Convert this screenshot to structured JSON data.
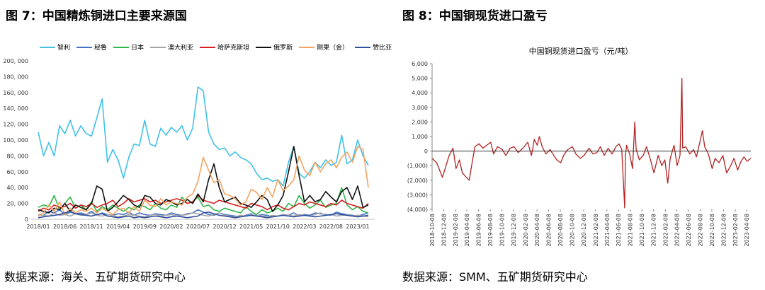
{
  "figure1": {
    "title": "图 7：中国精炼铜进口主要来源国",
    "source": "数据来源：海关、五矿期货研究中心"
  },
  "figure2": {
    "title": "图 8：中国铜现货进口盈亏",
    "source": "数据来源：SMM、五矿期货研究中心"
  },
  "colors": {
    "智利": "#3fc1e8",
    "秘鲁": "#4472c4",
    "日本": "#2eb84c",
    "澳大利亚": "#a5a5a5",
    "哈萨克斯坦": "#d62020",
    "俄罗斯": "#111111",
    "刚果（金）": "#f4a460",
    "赞比亚": "#2f4f9f",
    "profit_line": "#b22222"
  },
  "chart_data": [
    {
      "type": "line",
      "title": "",
      "ylim": [
        0,
        200000
      ],
      "yticks": [
        "0",
        "20, 000",
        "40, 000",
        "60, 000",
        "80, 000",
        "100, 000",
        "120, 000",
        "140, 000",
        "160, 000",
        "180, 000",
        "200, 000"
      ],
      "x_range": [
        "2018-01",
        "2023-03"
      ],
      "xticks": [
        "2018/01",
        "2018/06",
        "2018/11",
        "2019/04",
        "2019/09",
        "2020/02",
        "2020/07",
        "2020/12",
        "2021/05",
        "2021/10",
        "2022/03",
        "2022/08",
        "2023/01"
      ],
      "legend_position": "top",
      "series": [
        {
          "name": "智利",
          "values": [
            110000,
            80000,
            97000,
            80000,
            118000,
            108000,
            125000,
            105000,
            118000,
            108000,
            105000,
            128000,
            152000,
            72000,
            88000,
            75000,
            52000,
            78000,
            95000,
            93000,
            125000,
            95000,
            92000,
            115000,
            106000,
            116000,
            110000,
            118000,
            100000,
            115000,
            167000,
            162000,
            110000,
            95000,
            88000,
            90000,
            80000,
            85000,
            78000,
            75000,
            70000,
            58000,
            50000,
            52000,
            48000,
            50000,
            42000,
            72000,
            92000,
            58000,
            52000,
            60000,
            72000,
            65000,
            75000,
            68000,
            72000,
            106000,
            70000,
            75000,
            100000,
            80000,
            68000
          ]
        },
        {
          "name": "秘鲁",
          "values": [
            6000,
            5000,
            10000,
            8000,
            12000,
            6000,
            9000,
            7000,
            8000,
            6000,
            10000,
            5000,
            8000,
            6000,
            5000,
            7000,
            6000,
            9000,
            5000,
            8000,
            6000,
            5000,
            7000,
            6000,
            5000,
            8000,
            6000,
            5000,
            7000,
            8000,
            12000,
            9000,
            6000,
            5000,
            8000,
            6000,
            5000,
            4000,
            3000,
            5000,
            7000,
            4000,
            6000,
            5000,
            3000,
            4000,
            6000,
            5000,
            8000,
            4000,
            6000,
            5000,
            8000,
            7000,
            6000,
            5000,
            9000,
            7000,
            6000,
            5000,
            4000,
            6000,
            8000
          ]
        },
        {
          "name": "日本",
          "values": [
            15000,
            18000,
            16000,
            30000,
            12000,
            20000,
            28000,
            14000,
            18000,
            12000,
            22000,
            10000,
            16000,
            12000,
            18000,
            14000,
            10000,
            15000,
            12000,
            18000,
            16000,
            12000,
            20000,
            14000,
            12000,
            18000,
            15000,
            28000,
            20000,
            22000,
            28000,
            16000,
            18000,
            12000,
            10000,
            14000,
            12000,
            10000,
            8000,
            16000,
            10000,
            6000,
            12000,
            8000,
            10000,
            14000,
            10000,
            20000,
            16000,
            30000,
            20000,
            14000,
            18000,
            24000,
            15000,
            18000,
            20000,
            40000,
            18000,
            12000,
            16000,
            10000,
            8000
          ]
        },
        {
          "name": "澳大利亚",
          "values": [
            6000,
            5000,
            4000,
            8000,
            5000,
            6000,
            4000,
            7000,
            5000,
            6000,
            8000,
            5000,
            4000,
            6000,
            5000,
            3000,
            4000,
            6000,
            5000,
            4000,
            3000,
            5000,
            6000,
            4000,
            5000,
            6000,
            4000,
            5000,
            6000,
            8000,
            7000,
            5000,
            4000,
            6000,
            8000,
            5000,
            4000,
            3000,
            5000,
            4000,
            6000,
            5000,
            4000,
            3000,
            5000,
            4000,
            6000,
            5000,
            4000,
            6000,
            5000,
            4000,
            6000,
            8000,
            5000,
            6000,
            4000,
            5000,
            6000,
            4000,
            5000,
            4000,
            3000
          ]
        },
        {
          "name": "哈萨克斯坦",
          "values": [
            10000,
            14000,
            12000,
            18000,
            15000,
            16000,
            20000,
            14000,
            18000,
            16000,
            20000,
            15000,
            18000,
            20000,
            24000,
            16000,
            20000,
            26000,
            22000,
            24000,
            26000,
            22000,
            24000,
            20000,
            22000,
            24000,
            26000,
            24000,
            20000,
            22000,
            30000,
            24000,
            22000,
            20000,
            24000,
            22000,
            20000,
            18000,
            16000,
            14000,
            20000,
            18000,
            16000,
            12000,
            16000,
            18000,
            14000,
            12000,
            16000,
            20000,
            18000,
            22000,
            20000,
            18000,
            16000,
            20000,
            18000,
            24000,
            20000,
            18000,
            16000,
            14000,
            20000
          ]
        },
        {
          "name": "俄罗斯",
          "values": [
            12000,
            10000,
            8000,
            14000,
            12000,
            20000,
            10000,
            18000,
            15000,
            12000,
            20000,
            42000,
            38000,
            10000,
            15000,
            22000,
            30000,
            25000,
            18000,
            15000,
            30000,
            28000,
            20000,
            18000,
            25000,
            22000,
            18000,
            20000,
            25000,
            20000,
            32000,
            22000,
            50000,
            70000,
            40000,
            22000,
            25000,
            28000,
            20000,
            18000,
            15000,
            22000,
            30000,
            25000,
            10000,
            18000,
            30000,
            60000,
            92000,
            55000,
            22000,
            30000,
            22000,
            25000,
            35000,
            28000,
            22000,
            35000,
            40000,
            25000,
            42000,
            15000,
            18000
          ]
        },
        {
          "name": "刚果（金）",
          "values": [
            4000,
            8000,
            18000,
            10000,
            22000,
            6000,
            14000,
            8000,
            12000,
            10000,
            14000,
            8000,
            14000,
            10000,
            6000,
            12000,
            14000,
            8000,
            16000,
            10000,
            24000,
            18000,
            16000,
            26000,
            18000,
            22000,
            20000,
            18000,
            28000,
            32000,
            48000,
            78000,
            62000,
            46000,
            50000,
            32000,
            30000,
            26000,
            18000,
            22000,
            38000,
            34000,
            25000,
            40000,
            28000,
            50000,
            36000,
            42000,
            50000,
            80000,
            62000,
            55000,
            72000,
            60000,
            70000,
            75000,
            65000,
            78000,
            85000,
            72000,
            92000,
            88000,
            40000
          ]
        },
        {
          "name": "赞比亚",
          "values": [
            2000,
            3000,
            4000,
            5000,
            6000,
            8000,
            10000,
            7000,
            6000,
            5000,
            4000,
            6000,
            7000,
            4000,
            3000,
            2000,
            3000,
            4000,
            2000,
            3000,
            2000,
            3000,
            4000,
            3000,
            2000,
            3000,
            4000,
            3000,
            2000,
            3000,
            4000,
            8000,
            9000,
            7000,
            5000,
            4000,
            3000,
            2000,
            3000,
            4000,
            5000,
            4000,
            3000,
            2000,
            3000,
            4000,
            5000,
            4000,
            3000,
            4000,
            5000,
            4000,
            3000,
            4000,
            5000,
            6000,
            7000,
            6000,
            5000,
            4000,
            3000,
            4000,
            5000
          ]
        }
      ]
    },
    {
      "type": "line",
      "title": "中国铜现货进口盈亏（元/吨）",
      "ylim": [
        -4000,
        6000
      ],
      "yticks": [
        "(4,000)",
        "(3,000)",
        "(2,000)",
        "(1,000)",
        "0",
        "1,000",
        "2,000",
        "3,000",
        "4,000",
        "5,000",
        "6,000"
      ],
      "x_range": [
        "2018-10-08",
        "2023-04-30"
      ],
      "xticks": [
        "2018-10-08",
        "2018-12-08",
        "2019-02-08",
        "2019-04-08",
        "2019-06-08",
        "2019-08-08",
        "2019-10-08",
        "2019-12-08",
        "2020-02-08",
        "2020-04-08",
        "2020-06-08",
        "2020-08-08",
        "2020-10-08",
        "2020-12-08",
        "2021-02-08",
        "2021-04-08",
        "2021-06-08",
        "2021-08-08",
        "2021-10-08",
        "2021-12-08",
        "2022-02-08",
        "2022-04-08",
        "2022-06-08",
        "2022-08-08",
        "2022-10-08",
        "2022-12-08",
        "2023-02-08",
        "2023-04-08"
      ],
      "series": [
        {
          "name": "",
          "points": [
            [
              "2018-10-08",
              -500
            ],
            [
              "2018-11-01",
              -800
            ],
            [
              "2018-12-01",
              -1800
            ],
            [
              "2018-12-20",
              -1000
            ],
            [
              "2019-01-05",
              -300
            ],
            [
              "2019-01-25",
              200
            ],
            [
              "2019-02-10",
              -1200
            ],
            [
              "2019-02-28",
              -600
            ],
            [
              "2019-03-15",
              -1500
            ],
            [
              "2019-04-05",
              -1800
            ],
            [
              "2019-04-20",
              -2000
            ],
            [
              "2019-05-05",
              -800
            ],
            [
              "2019-05-20",
              300
            ],
            [
              "2019-06-10",
              500
            ],
            [
              "2019-07-01",
              200
            ],
            [
              "2019-07-20",
              400
            ],
            [
              "2019-08-10",
              600
            ],
            [
              "2019-08-25",
              -200
            ],
            [
              "2019-09-15",
              300
            ],
            [
              "2019-10-10",
              100
            ],
            [
              "2019-10-28",
              -300
            ],
            [
              "2019-11-20",
              200
            ],
            [
              "2019-12-10",
              300
            ],
            [
              "2020-01-01",
              -100
            ],
            [
              "2020-01-25",
              200
            ],
            [
              "2020-02-20",
              600
            ],
            [
              "2020-03-10",
              -300
            ],
            [
              "2020-03-25",
              800
            ],
            [
              "2020-04-10",
              400
            ],
            [
              "2020-04-20",
              1000
            ],
            [
              "2020-05-05",
              300
            ],
            [
              "2020-05-25",
              -200
            ],
            [
              "2020-06-15",
              100
            ],
            [
              "2020-07-05",
              -300
            ],
            [
              "2020-07-20",
              -600
            ],
            [
              "2020-08-10",
              -800
            ],
            [
              "2020-08-25",
              -300
            ],
            [
              "2020-09-15",
              100
            ],
            [
              "2020-10-10",
              300
            ],
            [
              "2020-10-28",
              -200
            ],
            [
              "2020-11-20",
              -500
            ],
            [
              "2020-12-10",
              -300
            ],
            [
              "2021-01-05",
              200
            ],
            [
              "2021-01-25",
              -200
            ],
            [
              "2021-02-15",
              -100
            ],
            [
              "2021-03-05",
              300
            ],
            [
              "2021-03-25",
              -300
            ],
            [
              "2021-04-15",
              200
            ],
            [
              "2021-05-05",
              -200
            ],
            [
              "2021-05-25",
              300
            ],
            [
              "2021-06-10",
              500
            ],
            [
              "2021-06-25",
              100
            ],
            [
              "2021-07-10",
              -3900
            ],
            [
              "2021-07-14",
              -300
            ],
            [
              "2021-07-20",
              400
            ],
            [
              "2021-08-05",
              -200
            ],
            [
              "2021-08-20",
              -1200
            ],
            [
              "2021-09-01",
              2000
            ],
            [
              "2021-09-08",
              100
            ],
            [
              "2021-09-25",
              -600
            ],
            [
              "2021-10-15",
              -300
            ],
            [
              "2021-11-01",
              300
            ],
            [
              "2021-11-20",
              -500
            ],
            [
              "2021-12-10",
              -1500
            ],
            [
              "2022-01-01",
              -300
            ],
            [
              "2022-01-20",
              -1000
            ],
            [
              "2022-02-05",
              -600
            ],
            [
              "2022-02-20",
              -2200
            ],
            [
              "2022-03-05",
              -500
            ],
            [
              "2022-03-25",
              400
            ],
            [
              "2022-04-10",
              -1000
            ],
            [
              "2022-04-25",
              -300
            ],
            [
              "2022-05-05",
              5000
            ],
            [
              "2022-05-09",
              200
            ],
            [
              "2022-05-25",
              300
            ],
            [
              "2022-06-15",
              -200
            ],
            [
              "2022-07-05",
              100
            ],
            [
              "2022-07-20",
              -400
            ],
            [
              "2022-08-10",
              800
            ],
            [
              "2022-08-20",
              1400
            ],
            [
              "2022-09-01",
              300
            ],
            [
              "2022-09-20",
              -200
            ],
            [
              "2022-10-10",
              -1200
            ],
            [
              "2022-10-25",
              -500
            ],
            [
              "2022-11-15",
              -800
            ],
            [
              "2022-12-05",
              -300
            ],
            [
              "2022-12-25",
              -1500
            ],
            [
              "2023-01-15",
              -1000
            ],
            [
              "2023-02-01",
              -500
            ],
            [
              "2023-02-20",
              -1300
            ],
            [
              "2023-03-10",
              -700
            ],
            [
              "2023-03-25",
              -400
            ],
            [
              "2023-04-10",
              -700
            ],
            [
              "2023-04-30",
              -500
            ]
          ]
        }
      ]
    }
  ]
}
